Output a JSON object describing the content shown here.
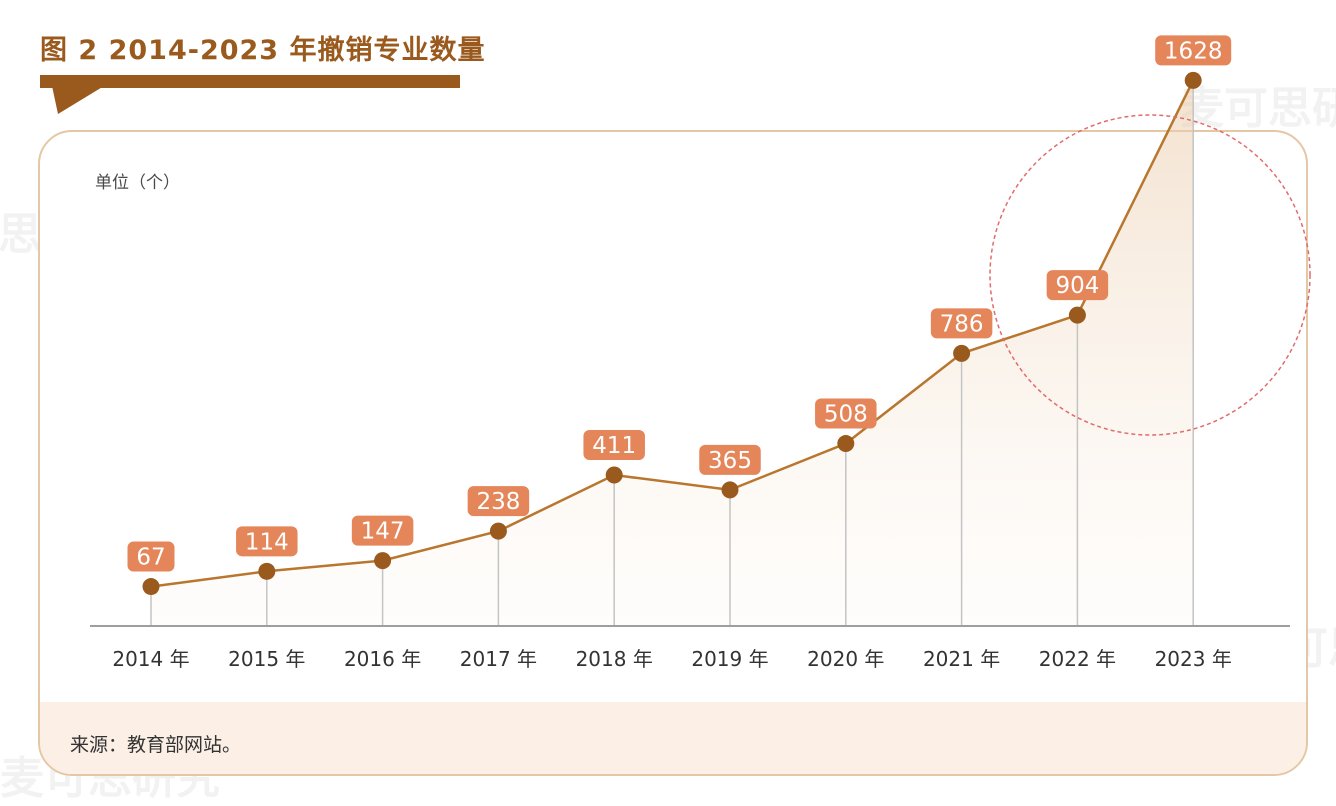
{
  "figure": {
    "title": "图 2 2014-2023 年撤销专业数量",
    "unit_label": "单位（个）",
    "source": "来源：教育部网站。"
  },
  "watermark_text": "麦可思研究",
  "colors": {
    "title": "#9a5a1e",
    "line": "#b8762f",
    "marker": "#9a5a1e",
    "label_bg": "#e4865a",
    "label_text": "#ffffff",
    "axis": "#9e9e9e",
    "highlight_circle": "#e26b6b",
    "panel_border": "#e4c8a6"
  },
  "chart_data": {
    "type": "line",
    "title": "图 2 2014-2023 年撤销专业数量",
    "ylabel": "单位（个）",
    "xlabel": "",
    "categories": [
      "2014 年",
      "2015 年",
      "2016 年",
      "2017 年",
      "2018 年",
      "2019 年",
      "2020 年",
      "2021 年",
      "2022 年",
      "2023 年"
    ],
    "values": [
      67,
      114,
      147,
      238,
      411,
      365,
      508,
      786,
      904,
      1628
    ],
    "ylim": [
      -50,
      1700
    ],
    "grid": false,
    "data_labels": true,
    "highlight": {
      "categories": [
        "2022 年",
        "2023 年"
      ],
      "style": "dashed circle"
    }
  }
}
